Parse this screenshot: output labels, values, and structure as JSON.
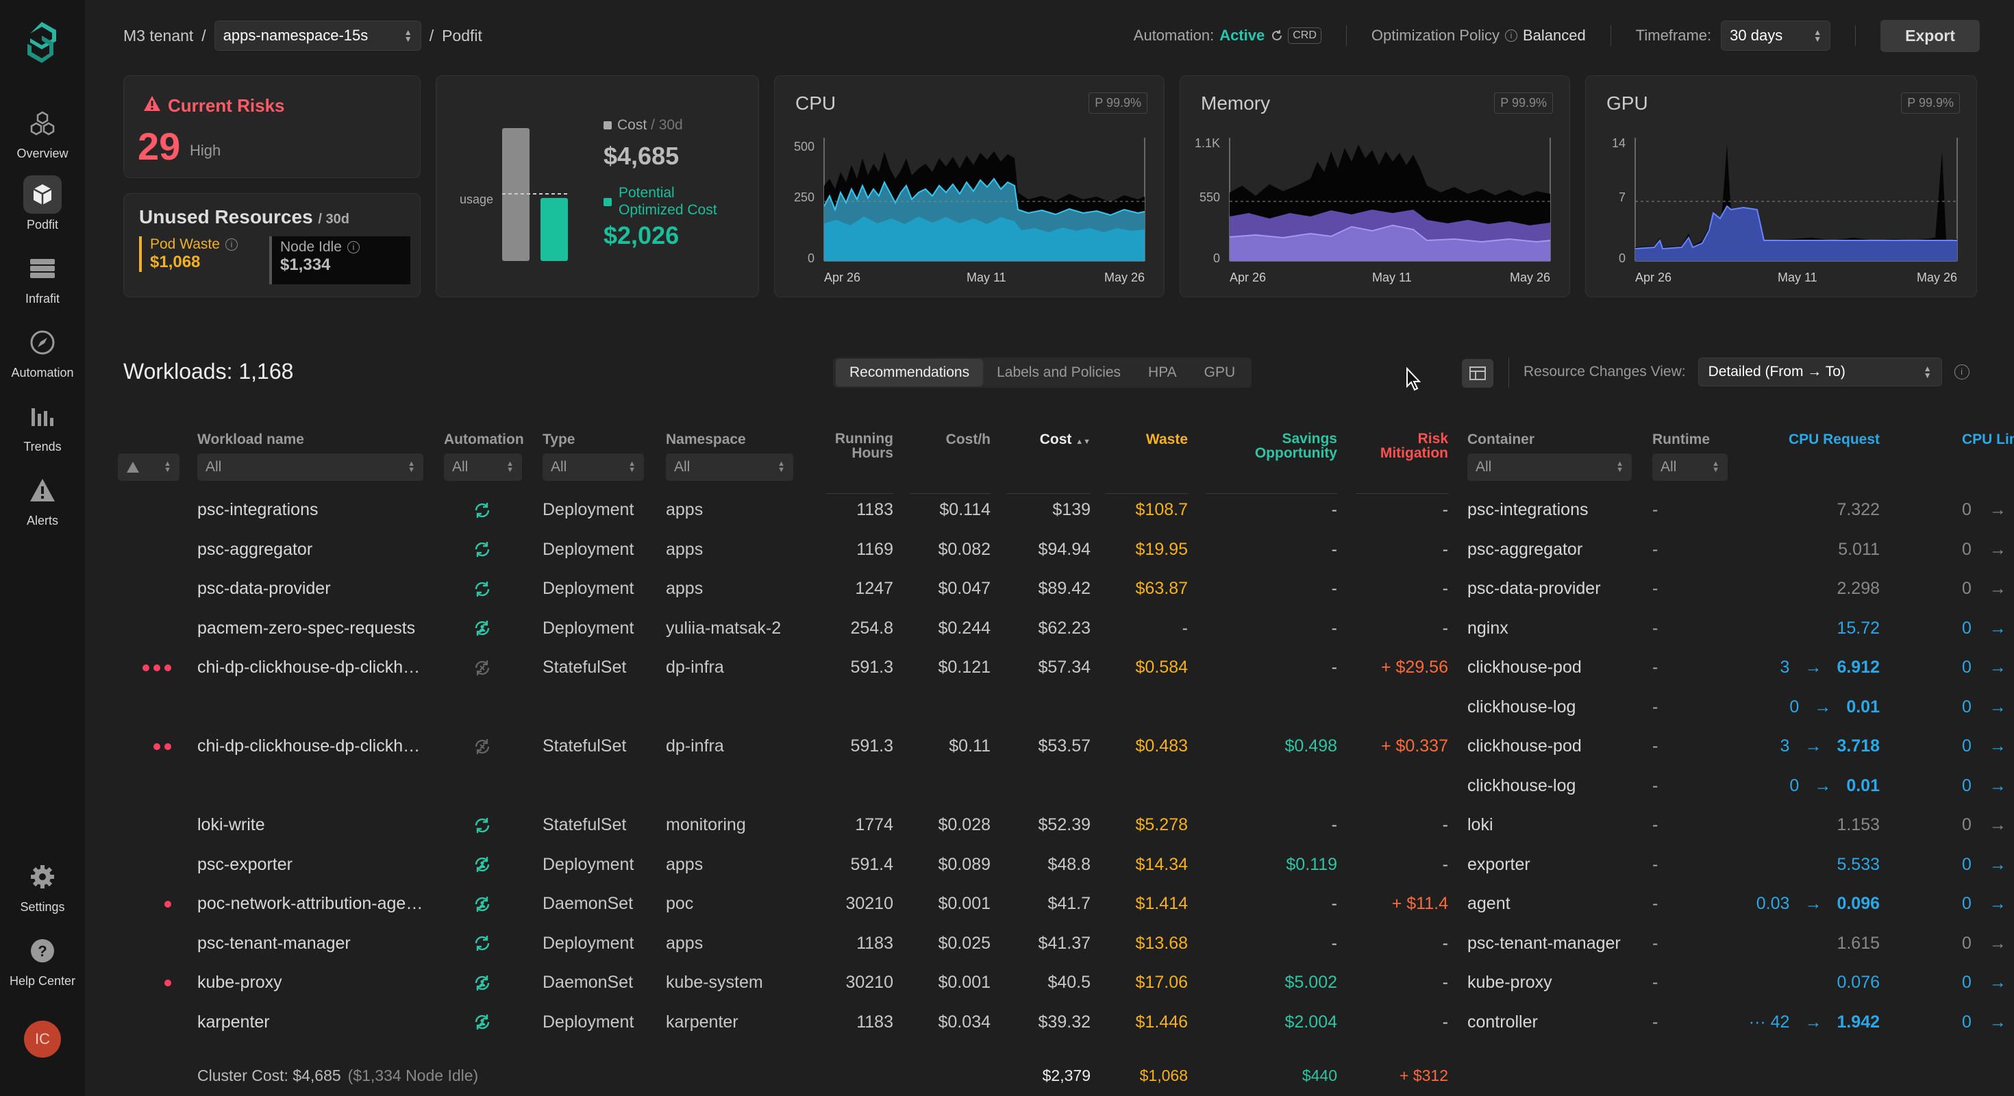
{
  "sidebar": {
    "items": [
      {
        "label": "Overview",
        "icon": "cubes-icon"
      },
      {
        "label": "Podfit",
        "icon": "cube-icon",
        "active": true
      },
      {
        "label": "Infrafit",
        "icon": "server-icon"
      },
      {
        "label": "Automation",
        "icon": "compass-icon"
      },
      {
        "label": "Trends",
        "icon": "bar-chart-icon"
      },
      {
        "label": "Alerts",
        "icon": "warning-icon"
      },
      {
        "label": "Settings",
        "icon": "gear-icon"
      },
      {
        "label": "Help Center",
        "icon": "help-icon"
      }
    ],
    "avatar_initials": "IC"
  },
  "header": {
    "tenant": "M3 tenant",
    "namespace": "apps-namespace-15s",
    "page": "Podfit",
    "automation_label": "Automation:",
    "automation_status": "Active",
    "automation_badge": "CRD",
    "policy_label": "Optimization Policy",
    "policy_value": "Balanced",
    "timeframe_label": "Timeframe:",
    "timeframe_value": "30 days",
    "export_label": "Export"
  },
  "risks": {
    "title": "Current Risks",
    "count": "29",
    "level": "High"
  },
  "unused": {
    "title": "Unused Resources",
    "period": "/ 30d",
    "pod_waste_label": "Pod Waste",
    "pod_waste_value": "$1,068",
    "node_idle_label": "Node Idle",
    "node_idle_value": "$1,334"
  },
  "cost_card": {
    "usage_label": "usage",
    "cost_label": "Cost",
    "cost_period": "/ 30d",
    "cost_value": "$4,685",
    "optimized_label_1": "Potential",
    "optimized_label_2": "Optimized Cost",
    "optimized_value": "$2,026"
  },
  "charts": [
    {
      "title": "CPU",
      "badge": "P 99.9%",
      "yticks": [
        "500",
        "250",
        "0"
      ],
      "xticks": [
        "Apr 26",
        "May 11",
        "May 26"
      ]
    },
    {
      "title": "Memory",
      "badge": "P 99.9%",
      "yticks": [
        "1.1K",
        "550",
        "0"
      ],
      "xticks": [
        "Apr 26",
        "May 11",
        "May 26"
      ]
    },
    {
      "title": "GPU",
      "badge": "P 99.9%",
      "yticks": [
        "14",
        "7",
        "0"
      ],
      "xticks": [
        "Apr 26",
        "May 11",
        "May 26"
      ]
    }
  ],
  "toolbar": {
    "workloads_title": "Workloads: 1,168",
    "tabs": [
      "Recommendations",
      "Labels and Policies",
      "HPA",
      "GPU"
    ],
    "resource_changes_label": "Resource Changes View:",
    "resource_changes_value": "Detailed (From → To)"
  },
  "columns": {
    "workload": "Workload name",
    "automation": "Automation",
    "type": "Type",
    "namespace": "Namespace",
    "running_1": "Running",
    "running_2": "Hours",
    "costh": "Cost/h",
    "cost": "Cost",
    "waste": "Waste",
    "savings_1": "Savings",
    "savings_2": "Opportunity",
    "risk_1": "Risk",
    "risk_2": "Mitigation",
    "container": "Container",
    "runtime": "Runtime",
    "cpu_request": "CPU Request",
    "cpu_limit": "CPU Lim"
  },
  "filters": {
    "all": "All"
  },
  "rows": [
    {
      "dots": 0,
      "name": "psc-integrations",
      "auto": "sync",
      "type": "Deployment",
      "ns": "apps",
      "hrs": "1183",
      "costh": "$0.114",
      "cost": "$139",
      "waste": "$108.7",
      "sav": "-",
      "risk": "-",
      "containers": [
        {
          "name": "psc-integrations",
          "rt": "-",
          "req": "7.322",
          "lim": "0"
        }
      ]
    },
    {
      "dots": 0,
      "name": "psc-aggregator",
      "auto": "sync",
      "type": "Deployment",
      "ns": "apps",
      "hrs": "1169",
      "costh": "$0.082",
      "cost": "$94.94",
      "waste": "$19.95",
      "sav": "-",
      "risk": "-",
      "containers": [
        {
          "name": "psc-aggregator",
          "rt": "-",
          "req": "5.011",
          "lim": "0"
        }
      ]
    },
    {
      "dots": 0,
      "name": "psc-data-provider",
      "auto": "sync",
      "type": "Deployment",
      "ns": "apps",
      "hrs": "1247",
      "costh": "$0.047",
      "cost": "$89.42",
      "waste": "$63.87",
      "sav": "-",
      "risk": "-",
      "containers": [
        {
          "name": "psc-data-provider",
          "rt": "-",
          "req": "2.298",
          "lim": "0"
        }
      ]
    },
    {
      "dots": 0,
      "name": "pacmem-zero-spec-requests",
      "auto": "sync-person",
      "type": "Deployment",
      "ns": "yuliia-matsak-2",
      "hrs": "254.8",
      "costh": "$0.244",
      "cost": "$62.23",
      "waste": "-",
      "sav": "-",
      "risk": "-",
      "containers": [
        {
          "name": "nginx",
          "rt": "-",
          "req": "15.72",
          "lim": "0",
          "hl": true
        }
      ]
    },
    {
      "dots": 3,
      "name": "chi-dp-clickhouse-dp-clickh…",
      "auto": "sync-off",
      "type": "StatefulSet",
      "ns": "dp-infra",
      "hrs": "591.3",
      "costh": "$0.121",
      "cost": "$57.34",
      "waste": "$0.584",
      "sav": "-",
      "risk": "+ $29.56",
      "containers": [
        {
          "name": "clickhouse-pod",
          "rt": "-",
          "from": "3",
          "req": "6.912",
          "lim": "0",
          "hl": true
        },
        {
          "name": "clickhouse-log",
          "rt": "-",
          "from": "0",
          "req": "0.01",
          "lim": "0",
          "hl": true
        }
      ]
    },
    {
      "dots": 2,
      "name": "chi-dp-clickhouse-dp-clickh…",
      "auto": "sync-off",
      "type": "StatefulSet",
      "ns": "dp-infra",
      "hrs": "591.3",
      "costh": "$0.11",
      "cost": "$53.57",
      "waste": "$0.483",
      "sav": "$0.498",
      "risk": "+ $0.337",
      "containers": [
        {
          "name": "clickhouse-pod",
          "rt": "-",
          "from": "3",
          "req": "3.718",
          "lim": "0",
          "hl": true
        },
        {
          "name": "clickhouse-log",
          "rt": "-",
          "from": "0",
          "req": "0.01",
          "lim": "0",
          "hl": true
        }
      ]
    },
    {
      "dots": 0,
      "name": "loki-write",
      "auto": "sync",
      "type": "StatefulSet",
      "ns": "monitoring",
      "hrs": "1774",
      "costh": "$0.028",
      "cost": "$52.39",
      "waste": "$5.278",
      "sav": "-",
      "risk": "-",
      "containers": [
        {
          "name": "loki",
          "rt": "-",
          "req": "1.153",
          "lim": "0"
        }
      ]
    },
    {
      "dots": 0,
      "name": "psc-exporter",
      "auto": "sync-person",
      "type": "Deployment",
      "ns": "apps",
      "hrs": "591.4",
      "costh": "$0.089",
      "cost": "$48.8",
      "waste": "$14.34",
      "sav": "$0.119",
      "risk": "-",
      "containers": [
        {
          "name": "exporter",
          "rt": "-",
          "req": "5.533",
          "lim": "0",
          "hl": true
        }
      ]
    },
    {
      "dots": 1,
      "name": "poc-network-attribution-age…",
      "auto": "sync-person",
      "type": "DaemonSet",
      "ns": "poc",
      "hrs": "30210",
      "costh": "$0.001",
      "cost": "$41.7",
      "waste": "$1.414",
      "sav": "-",
      "risk": "+ $11.4",
      "containers": [
        {
          "name": "agent",
          "rt": "-",
          "from": "0.03",
          "req": "0.096",
          "lim": "0",
          "hl": true
        }
      ]
    },
    {
      "dots": 0,
      "name": "psc-tenant-manager",
      "auto": "sync",
      "type": "Deployment",
      "ns": "apps",
      "hrs": "1183",
      "costh": "$0.025",
      "cost": "$41.37",
      "waste": "$13.68",
      "sav": "-",
      "risk": "-",
      "containers": [
        {
          "name": "psc-tenant-manager",
          "rt": "-",
          "req": "1.615",
          "lim": "0"
        }
      ]
    },
    {
      "dots": 1,
      "name": "kube-proxy",
      "auto": "sync-person",
      "type": "DaemonSet",
      "ns": "kube-system",
      "hrs": "30210",
      "costh": "$0.001",
      "cost": "$40.5",
      "waste": "$17.06",
      "sav": "$5.002",
      "risk": "-",
      "containers": [
        {
          "name": "kube-proxy",
          "rt": "-",
          "req": "0.076",
          "lim": "0",
          "hl": true
        }
      ]
    },
    {
      "dots": 0,
      "name": "karpenter",
      "auto": "sync-person",
      "type": "Deployment",
      "ns": "karpenter",
      "hrs": "1183",
      "costh": "$0.034",
      "cost": "$39.32",
      "waste": "$1.446",
      "sav": "$2.004",
      "risk": "-",
      "containers": [
        {
          "name": "controller",
          "rt": "-",
          "from": "··· 42",
          "req": "1.942",
          "lim": "0",
          "hl": true
        }
      ]
    }
  ],
  "footer": {
    "cluster_cost": "Cluster Cost: $4,685",
    "node_idle": "($1,334 Node Idle)",
    "cost": "$2,379",
    "waste": "$1,068",
    "savings": "$440",
    "risk": "+ $312"
  },
  "colors": {
    "accent": "#26c6b0",
    "risk": "#ff5a68",
    "waste": "#f0b028",
    "cpu": "#2aa8e8"
  }
}
